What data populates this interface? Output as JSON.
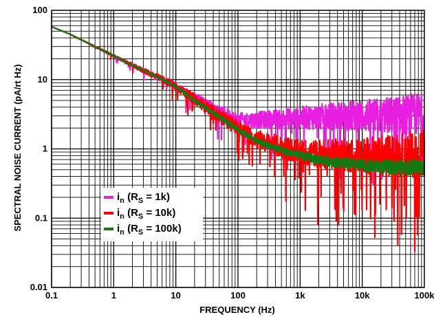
{
  "chart_data": {
    "type": "line",
    "title": "",
    "xlabel": "FREQUENCY (Hz)",
    "ylabel": "SPECTRAL NOISE CURRENT (pA/rt Hz)",
    "x_scale": "log",
    "y_scale": "log",
    "xlim": [
      0.1,
      100000
    ],
    "ylim": [
      0.01,
      100
    ],
    "grid": true,
    "legend_position": "bottom-left",
    "x_tick_labels": [
      "0.1",
      "1",
      "10",
      "100",
      "1k",
      "10k",
      "100k"
    ],
    "x_tick_values": [
      0.1,
      1,
      10,
      100,
      1000,
      10000,
      100000
    ],
    "y_tick_labels": [
      "0.01",
      "0.1",
      "1",
      "10",
      "100"
    ],
    "y_tick_values": [
      0.01,
      0.1,
      1,
      10,
      100
    ],
    "series": [
      {
        "name": "i_n (R_S = 1k)",
        "label_main": "i",
        "label_sub1": "n",
        "label_mid": " (R",
        "label_sub2": "S",
        "label_end": " = 1k)",
        "color": "#e81fe0",
        "x": [
          0.1,
          0.2,
          0.5,
          1,
          2,
          5,
          10,
          20,
          50,
          100,
          200,
          500,
          1000,
          2000,
          5000,
          10000,
          20000,
          50000,
          100000
        ],
        "y": [
          58,
          45,
          30,
          22,
          16,
          11,
          8,
          5.5,
          3.5,
          2.6,
          2.6,
          2.7,
          2.8,
          2.9,
          3.0,
          3.0,
          3.0,
          3.1,
          3.2
        ]
      },
      {
        "name": "i_n (R_S = 10k)",
        "label_main": "i",
        "label_sub1": "n",
        "label_mid": " (R",
        "label_sub2": "S",
        "label_end": " = 10k)",
        "color": "#ff0000",
        "x": [
          0.1,
          0.2,
          0.5,
          1,
          2,
          5,
          10,
          20,
          50,
          100,
          200,
          500,
          1000,
          2000,
          5000,
          10000,
          20000,
          50000,
          100000
        ],
        "y": [
          58,
          45,
          30,
          22,
          16,
          11,
          8,
          5.2,
          3.0,
          2.0,
          1.4,
          1.05,
          0.9,
          0.85,
          0.82,
          0.8,
          0.8,
          0.82,
          0.85
        ]
      },
      {
        "name": "i_n (R_S = 100k)",
        "label_main": "i",
        "label_sub1": "n",
        "label_mid": " (R",
        "label_sub2": "S",
        "label_end": " = 100k)",
        "color": "#137a13",
        "x": [
          0.1,
          0.2,
          0.5,
          1,
          2,
          5,
          10,
          20,
          50,
          100,
          200,
          500,
          1000,
          2000,
          5000,
          10000,
          20000,
          50000,
          100000
        ],
        "y": [
          58,
          45,
          30,
          22,
          16,
          11,
          8,
          5.0,
          2.9,
          1.9,
          1.3,
          0.95,
          0.8,
          0.7,
          0.62,
          0.57,
          0.55,
          0.54,
          0.55
        ]
      }
    ]
  }
}
